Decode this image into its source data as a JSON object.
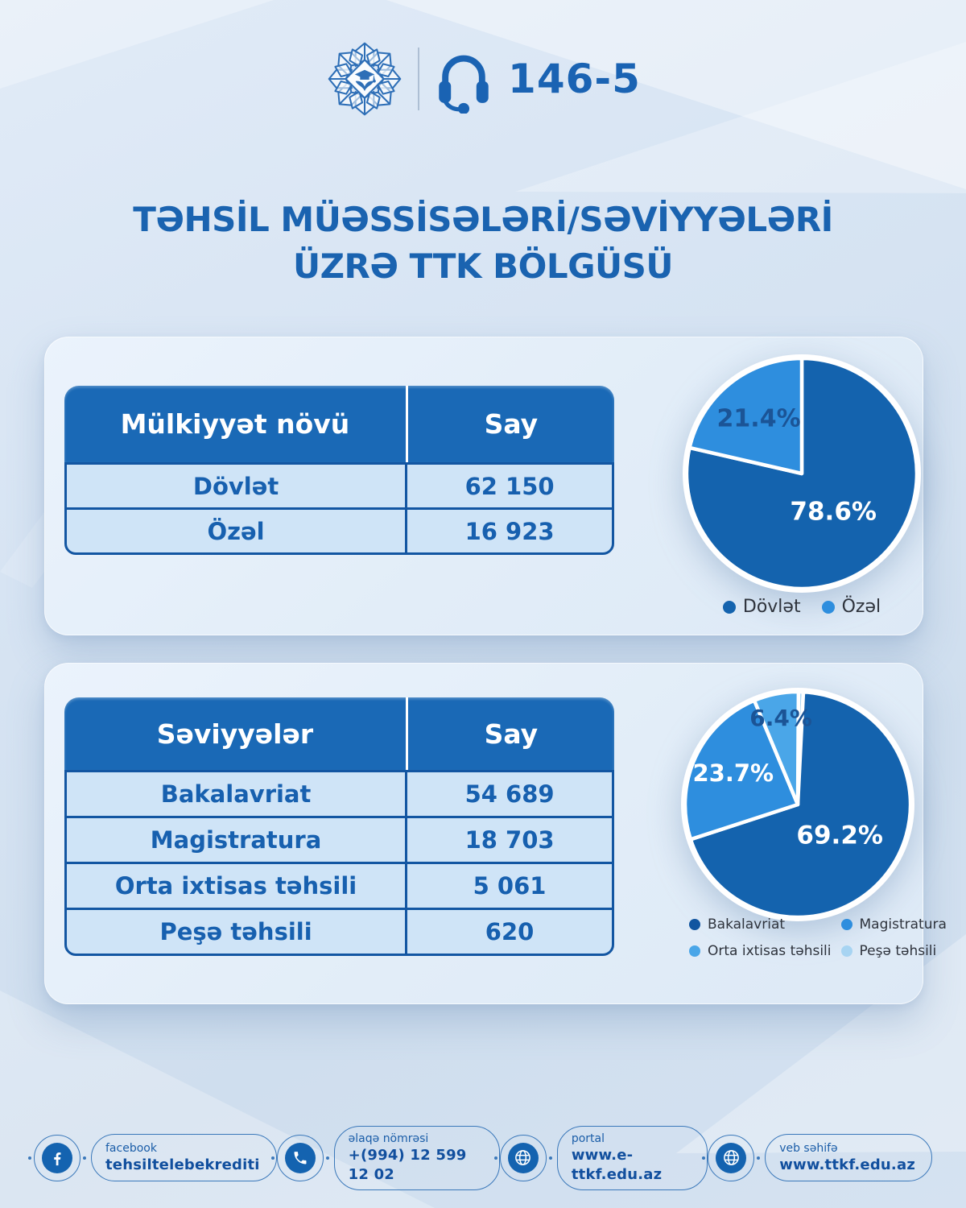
{
  "header": {
    "logo_icon": "education-fund-logo",
    "headset_icon": "headset-icon",
    "hotline": "146-5"
  },
  "title": {
    "line1": "TƏHSİL MÜƏSSİSƏLƏRİ/SƏVİYYƏLƏRİ",
    "line2": "ÜZRƏ TTK BÖLGÜSÜ"
  },
  "section1": {
    "table": {
      "headers": [
        "Mülkiyyət növü",
        "Say"
      ],
      "rows": [
        [
          "Dövlət",
          "62 150"
        ],
        [
          "Özəl",
          "16 923"
        ]
      ]
    }
  },
  "section2": {
    "table": {
      "headers": [
        "Səviyyələr",
        "Say"
      ],
      "rows": [
        [
          "Bakalavriat",
          "54 689"
        ],
        [
          "Magistratura",
          "18 703"
        ],
        [
          "Orta ixtisas təhsili",
          "5 061"
        ],
        [
          "Peşə təhsili",
          "620"
        ]
      ]
    }
  },
  "chart_data": [
    {
      "type": "pie",
      "labels": [
        "Dövlət",
        "Özəl"
      ],
      "values": [
        78.6,
        21.4
      ],
      "counts": [
        62150,
        16923
      ],
      "unit": "%",
      "radius": 143,
      "start_angle": "top",
      "direction": "clockwise",
      "legend_position": "bottom",
      "slices": [
        {
          "label": "Dövlət",
          "pct": 78.6,
          "color": "#1463ae",
          "text": "78.6%",
          "text_color": "#ffffff",
          "text_size": 31,
          "label_r": 0.44
        },
        {
          "label": "Özəl",
          "pct": 21.4,
          "color": "#2e8ede",
          "text": "21.4%",
          "text_color": "#1b5496",
          "text_size": 30,
          "label_r": 0.6
        }
      ],
      "legend": [
        {
          "label": "Dövlət",
          "color": "#1463ae"
        },
        {
          "label": "Özəl",
          "color": "#2e8ede"
        }
      ]
    },
    {
      "type": "pie",
      "labels": [
        "Bakalavriat",
        "Magistratura",
        "Orta ixtisas təhsili",
        "Peşə təhsili"
      ],
      "values": [
        69.2,
        23.7,
        6.4,
        0.8
      ],
      "counts": [
        54689,
        18703,
        5061,
        620
      ],
      "unit": "%",
      "radius": 140,
      "start_angle": "top",
      "direction": "clockwise",
      "legend_position": "bottom",
      "slices": [
        {
          "label": "Peşə təhsili",
          "pct": 0.8,
          "color": "#a7d4f2",
          "text": "",
          "text_color": "#1b5496",
          "text_size": 0,
          "label_r": 0
        },
        {
          "label": "Bakalavriat",
          "pct": 69.2,
          "color": "#1463ae",
          "text": "69.2%",
          "text_color": "#ffffff",
          "text_size": 31,
          "label_r": 0.47
        },
        {
          "label": "Magistratura",
          "pct": 23.7,
          "color": "#2e8ede",
          "text": "23.7%",
          "text_color": "#ffffff",
          "text_size": 29,
          "label_r": 0.63
        },
        {
          "label": "Orta ixtisas təhsili",
          "pct": 6.4,
          "color": "#4aa6e8",
          "text": "6.4%",
          "text_color": "#1b5496",
          "text_size": 28,
          "label_r": 0.77
        }
      ],
      "legend": [
        {
          "label": "Bakalavriat",
          "color": "#1155a0"
        },
        {
          "label": "Magistratura",
          "color": "#2e8ede"
        },
        {
          "label": "Orta ixtisas təhsili",
          "color": "#4aa6e8"
        },
        {
          "label": "Peşə təhsili",
          "color": "#a7d4f2"
        }
      ]
    }
  ],
  "footer": {
    "items": [
      {
        "icon": "facebook-icon",
        "label": "facebook",
        "value": "tehsiltelebekrediti"
      },
      {
        "icon": "phone-icon",
        "label": "əlaqə nömrəsi",
        "value": "+(994) 12 599 12 02"
      },
      {
        "icon": "globe-icon",
        "label": "portal",
        "value": "www.e-ttkf.edu.az"
      },
      {
        "icon": "globe-icon",
        "label": "veb səhifə",
        "value": "www.ttkf.edu.az"
      }
    ]
  },
  "colors": {
    "primary_dark": "#1463ae",
    "primary_medium": "#2e8ede",
    "primary_light": "#4aa6e8",
    "primary_pale": "#a7d4f2",
    "table_header_bg": "#1a69b6",
    "table_border": "#1356a2",
    "table_row_bg": "#cfe4f7",
    "heading_text": "#1a63b0",
    "page_bg": "#d7e4f3",
    "card_bg": "#e2edf8"
  }
}
